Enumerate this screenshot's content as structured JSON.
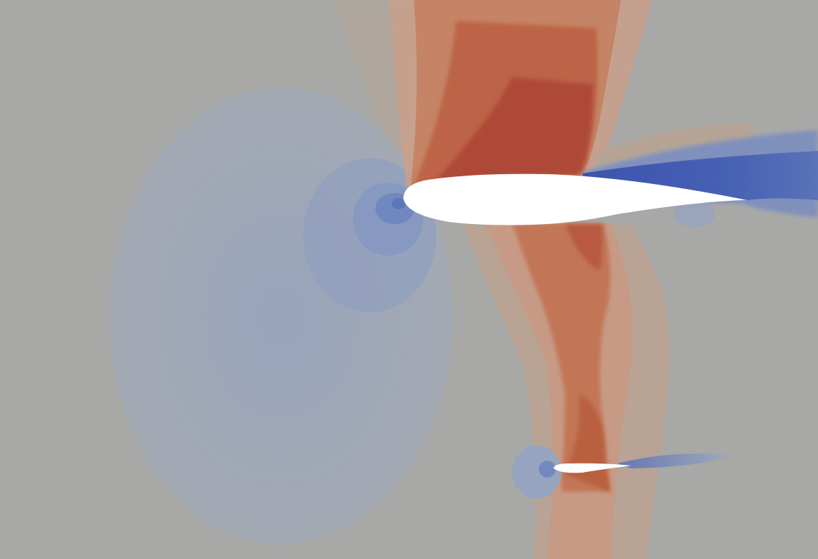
{
  "scene": {
    "description_shown_text": "",
    "colors": {
      "background": "#a8a9a7",
      "low_region": "#9aa3b6",
      "deep_low": "#3f57ae",
      "high_region_light": "#c79a85",
      "high_region_mid": "#c27656",
      "high_region_strong": "#ad4a38",
      "body_fill": "#ffffff"
    },
    "bodies": [
      {
        "name": "main-airfoil"
      },
      {
        "name": "tail-airfoil"
      }
    ]
  }
}
